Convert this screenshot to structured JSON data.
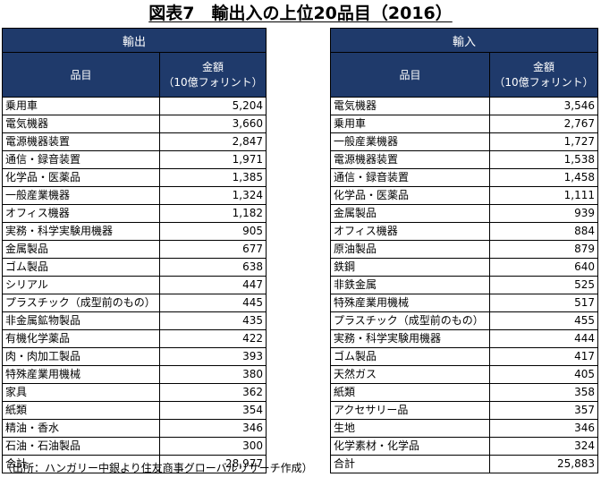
{
  "title": "図表7　輸出入の上位20品目（2016）",
  "exports": {
    "heading": "輸出",
    "col_item": "品目",
    "col_amount_line1": "金額",
    "col_amount_line2": "（10億フォリント）",
    "rows": [
      {
        "item": "乗用車",
        "value": "5,204"
      },
      {
        "item": "電気機器",
        "value": "3,660"
      },
      {
        "item": "電源機器装置",
        "value": "2,847"
      },
      {
        "item": "通信・録音装置",
        "value": "1,971"
      },
      {
        "item": "化学品・医薬品",
        "value": "1,385"
      },
      {
        "item": "一般産業機器",
        "value": "1,324"
      },
      {
        "item": "オフィス機器",
        "value": "1,182"
      },
      {
        "item": "実務・科学実験用機器",
        "value": "905"
      },
      {
        "item": "金属製品",
        "value": "677"
      },
      {
        "item": "ゴム製品",
        "value": "638"
      },
      {
        "item": "シリアル",
        "value": "447"
      },
      {
        "item": "プラスチック（成型前のもの）",
        "value": "445"
      },
      {
        "item": "非金属鉱物製品",
        "value": "435"
      },
      {
        "item": "有機化学薬品",
        "value": "422"
      },
      {
        "item": "肉・肉加工製品",
        "value": "393"
      },
      {
        "item": "特殊産業用機械",
        "value": "380"
      },
      {
        "item": "家具",
        "value": "362"
      },
      {
        "item": "紙類",
        "value": "354"
      },
      {
        "item": "精油・香水",
        "value": "346"
      },
      {
        "item": "石油・石油製品",
        "value": "300"
      }
    ],
    "total": {
      "item": "合計",
      "value": "28,977"
    }
  },
  "imports": {
    "heading": "輸入",
    "col_item": "品目",
    "col_amount_line1": "金額",
    "col_amount_line2": "（10億フォリント）",
    "rows": [
      {
        "item": "電気機器",
        "value": "3,546"
      },
      {
        "item": "乗用車",
        "value": "2,767"
      },
      {
        "item": "一般産業機器",
        "value": "1,727"
      },
      {
        "item": "電源機器装置",
        "value": "1,538"
      },
      {
        "item": "通信・録音装置",
        "value": "1,458"
      },
      {
        "item": "化学品・医薬品",
        "value": "1,111"
      },
      {
        "item": "金属製品",
        "value": "939"
      },
      {
        "item": "オフィス機器",
        "value": "884"
      },
      {
        "item": "原油製品",
        "value": "879"
      },
      {
        "item": "鉄鋼",
        "value": "640"
      },
      {
        "item": "非鉄金属",
        "value": "525"
      },
      {
        "item": "特殊産業用機械",
        "value": "517"
      },
      {
        "item": "プラスチック（成型前のもの）",
        "value": "455"
      },
      {
        "item": "実務・科学実験用機器",
        "value": "444"
      },
      {
        "item": "ゴム製品",
        "value": "417"
      },
      {
        "item": "天然ガス",
        "value": "405"
      },
      {
        "item": "紙類",
        "value": "358"
      },
      {
        "item": "アクセサリー品",
        "value": "357"
      },
      {
        "item": "生地",
        "value": "346"
      },
      {
        "item": "化学素材・化学品",
        "value": "324"
      }
    ],
    "total": {
      "item": "合計",
      "value": "25,883"
    }
  },
  "footnote": "（出所：ハンガリー中銀より住友商事グローバルリサーチ作成）",
  "colors": {
    "header_bg": "#1f3a6b",
    "header_text": "#ffffff"
  }
}
